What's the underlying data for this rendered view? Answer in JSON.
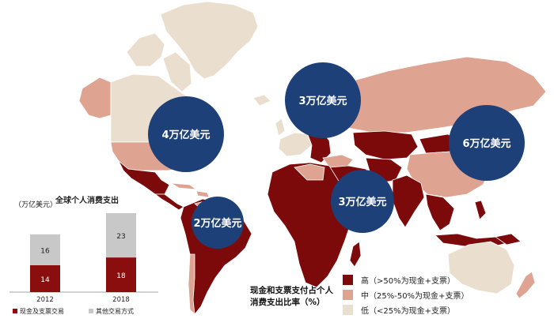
{
  "bubbles": [
    {
      "label": "4万亿美元",
      "region": "north-america"
    },
    {
      "label": "3万亿美元",
      "region": "europe"
    },
    {
      "label": "6万亿美元",
      "region": "east-asia"
    },
    {
      "label": "3万亿美元",
      "region": "middle-east-south-asia"
    },
    {
      "label": "2万亿美元",
      "region": "latin-america"
    }
  ],
  "chart": {
    "title": "全球个人消费支出",
    "unit": "（万亿美元）"
  },
  "chart_data": {
    "type": "bar",
    "stacked": true,
    "title": "全球个人消费支出",
    "ylabel": "（万亿美元）",
    "categories": [
      "2012",
      "2018"
    ],
    "series": [
      {
        "name": "现金及支票交易",
        "values": [
          14,
          18
        ],
        "color": "#8b0e0e"
      },
      {
        "name": "其他交易方式",
        "values": [
          16,
          23
        ],
        "color": "#c8c8c8"
      }
    ],
    "legend_position": "bottom"
  },
  "legend": {
    "title_line1": "现金和支票支付占个人",
    "title_line2": "消费支出比率（%）",
    "items": [
      {
        "label": "高（>50%为现金+支票）",
        "color": "#7c0a0a"
      },
      {
        "label": "中（25%-50%为现金+支票）",
        "color": "#dea391"
      },
      {
        "label": "低（<25%为现金+支票）",
        "color": "#eadfcf"
      }
    ]
  },
  "colors": {
    "high": "#7c0a0a",
    "medium": "#dea391",
    "low": "#eadfcf",
    "bubble": "#1e4078",
    "unclassified": "#eeeeee"
  }
}
